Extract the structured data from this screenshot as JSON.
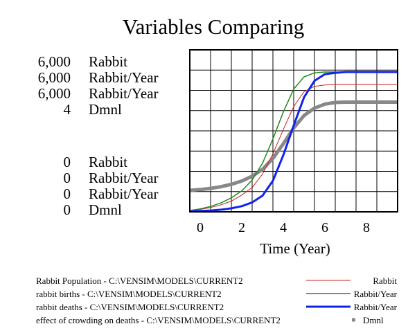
{
  "chart_data": {
    "type": "line",
    "title": "Variables Comparing",
    "xlabel": "Time (Year)",
    "xlim": [
      -0.5,
      9.5
    ],
    "x_ticks": [
      "0",
      "2",
      "4",
      "6",
      "8"
    ],
    "x_tick_values": [
      0,
      2,
      4,
      6,
      8
    ],
    "grid": true,
    "legend_position": "bottom",
    "y_scales": [
      {
        "max": "6,000",
        "min": "0",
        "unit": "Rabbit",
        "max_value": 6000,
        "min_value": 0
      },
      {
        "max": "6,000",
        "min": "0",
        "unit": "Rabbit/Year",
        "max_value": 6000,
        "min_value": 0
      },
      {
        "max": "6,000",
        "min": "0",
        "unit": "Rabbit/Year",
        "max_value": 6000,
        "min_value": 0
      },
      {
        "max": "4",
        "min": "0",
        "unit": "Dmnl",
        "max_value": 4,
        "min_value": 0
      }
    ],
    "series": [
      {
        "name": "Rabbit Population - C:\\VENSIM\\MODELS\\CURRENT2",
        "unit": "Rabbit",
        "scale": 0,
        "color": "#cc2222",
        "width": 1,
        "x": [
          -0.5,
          0,
          0.5,
          1,
          1.5,
          2,
          2.5,
          3,
          3.5,
          4,
          4.5,
          5,
          5.5,
          6,
          6.5,
          7,
          7.5,
          8,
          8.5,
          9,
          9.5
        ],
        "values": [
          50,
          90,
          160,
          260,
          400,
          620,
          900,
          1400,
          2150,
          3050,
          3900,
          4450,
          4650,
          4700,
          4710,
          4710,
          4710,
          4710,
          4710,
          4710,
          4710
        ]
      },
      {
        "name": "rabbit births - C:\\VENSIM\\MODELS\\CURRENT2",
        "unit": "Rabbit/Year",
        "scale": 1,
        "color": "#228822",
        "width": 1.5,
        "x": [
          -0.5,
          0,
          0.5,
          1,
          1.5,
          2,
          2.5,
          3,
          3.5,
          4,
          4.5,
          5,
          5.5,
          6,
          6.5,
          7,
          7.5,
          8,
          8.5,
          9,
          9.5
        ],
        "values": [
          50,
          110,
          200,
          330,
          520,
          780,
          1180,
          1800,
          2700,
          3700,
          4550,
          5000,
          5150,
          5180,
          5180,
          5180,
          5180,
          5180,
          5180,
          5180,
          5180
        ]
      },
      {
        "name": "rabbit deaths - C:\\VENSIM\\MODELS\\CURRENT2",
        "unit": "Rabbit/Year",
        "scale": 2,
        "color": "#1122ee",
        "width": 3,
        "x": [
          -0.5,
          0,
          0.5,
          1,
          1.5,
          2,
          2.5,
          3,
          3.5,
          4,
          4.5,
          5,
          5.5,
          6,
          6.5,
          7,
          7.5,
          8,
          8.5,
          9,
          9.5
        ],
        "values": [
          20,
          30,
          50,
          80,
          130,
          210,
          350,
          600,
          1150,
          2100,
          3200,
          4250,
          4850,
          5100,
          5150,
          5180,
          5180,
          5180,
          5180,
          5180,
          5180
        ]
      },
      {
        "name": "effect of crowding on deaths - C:\\VENSIM\\MODELS\\CURRENT2",
        "unit": "Dmnl",
        "scale": 3,
        "color": "#888888",
        "width": 5,
        "x": [
          -0.5,
          0,
          0.5,
          1,
          1.5,
          2,
          2.5,
          3,
          3.5,
          4,
          4.5,
          5,
          5.5,
          6,
          6.5,
          7,
          7.5,
          8,
          8.5,
          9,
          9.5
        ],
        "values": [
          0.53,
          0.55,
          0.58,
          0.62,
          0.68,
          0.76,
          0.88,
          1.05,
          1.32,
          1.68,
          2.07,
          2.38,
          2.56,
          2.66,
          2.7,
          2.71,
          2.71,
          2.71,
          2.71,
          2.71,
          2.71
        ]
      }
    ]
  }
}
